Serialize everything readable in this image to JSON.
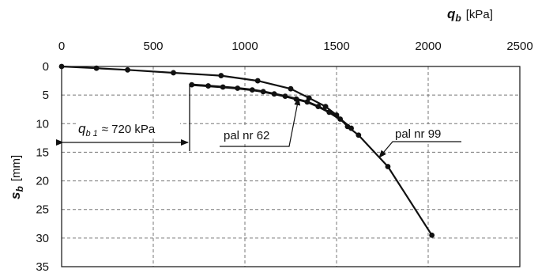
{
  "chart_data": {
    "type": "line",
    "x_axis": {
      "symbol": "q",
      "subscript": "b",
      "unit": "[kPa]",
      "lim": [
        0,
        2500
      ],
      "ticks": [
        0,
        500,
        1000,
        1500,
        2000,
        2500
      ],
      "position": "top"
    },
    "y_axis": {
      "symbol": "s",
      "subscript": "b",
      "unit": "[mm]",
      "lim": [
        0,
        35
      ],
      "ticks": [
        0,
        5,
        10,
        15,
        20,
        25,
        30,
        35
      ],
      "inverted": true
    },
    "grid": "dashed",
    "series": [
      {
        "name": "pal nr 99",
        "points": [
          [
            0,
            0
          ],
          [
            190,
            0.3
          ],
          [
            360,
            0.6
          ],
          [
            610,
            1.1
          ],
          [
            870,
            1.6
          ],
          [
            1070,
            2.5
          ],
          [
            1250,
            3.9
          ],
          [
            1350,
            5.5
          ],
          [
            1440,
            7.0
          ],
          [
            1500,
            8.5
          ],
          [
            1560,
            10.5
          ],
          [
            1620,
            12.0
          ],
          [
            1780,
            17.5
          ],
          [
            2020,
            29.5
          ]
        ]
      },
      {
        "name": "pal nr 62",
        "points": [
          [
            710,
            3.2
          ],
          [
            800,
            3.4
          ],
          [
            880,
            3.6
          ],
          [
            960,
            3.8
          ],
          [
            1040,
            4.1
          ],
          [
            1100,
            4.4
          ],
          [
            1160,
            4.8
          ],
          [
            1220,
            5.2
          ],
          [
            1280,
            5.7
          ],
          [
            1340,
            6.2
          ],
          [
            1400,
            7.0
          ],
          [
            1460,
            8.0
          ],
          [
            1520,
            9.2
          ],
          [
            1580,
            10.8
          ]
        ]
      }
    ],
    "annotations": {
      "q_b1": {
        "symbol": "q",
        "subscript": "b 1",
        "text": "≈ 720 kPa",
        "value": 720
      },
      "label_62": "pal nr 62",
      "label_99": "pal nr 99"
    }
  }
}
